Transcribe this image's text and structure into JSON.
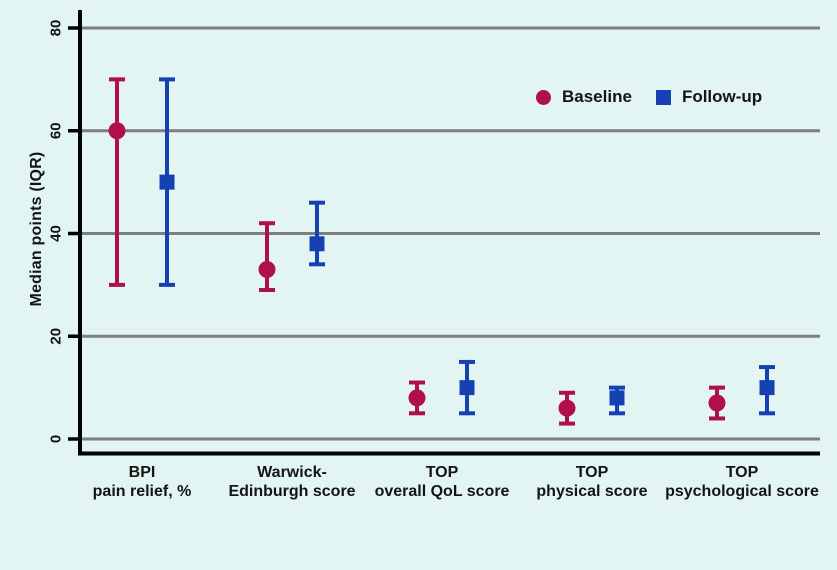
{
  "figure": {
    "background_color": "#e2f5f3"
  },
  "chart_data": {
    "type": "scatter",
    "subtype": "median-with-iqr-error-bars",
    "title": "",
    "xlabel": "",
    "ylabel": "Median points (IQR)",
    "yticks": [
      0,
      20,
      40,
      60,
      80
    ],
    "ylim": [
      0,
      83
    ],
    "grid": true,
    "legend_position": "top-right-inside",
    "background_color": "#e2f5f3",
    "gridline_color": "#7f7f7f",
    "axis_color": "#000000",
    "categories": [
      {
        "line1": "BPI",
        "line2": "pain relief, %"
      },
      {
        "line1": "Warwick-",
        "line2": "Edinburgh score"
      },
      {
        "line1": "TOP",
        "line2": "overall QoL score"
      },
      {
        "line1": "TOP",
        "line2": "physical score"
      },
      {
        "line1": "TOP",
        "line2": "psychological score"
      }
    ],
    "series": [
      {
        "name": "Baseline",
        "marker": "circle",
        "color": "#b00e4d",
        "values": [
          {
            "median": 60,
            "q1": 30,
            "q3": 70
          },
          {
            "median": 33,
            "q1": 29,
            "q3": 42
          },
          {
            "median": 8,
            "q1": 5,
            "q3": 11
          },
          {
            "median": 6,
            "q1": 3,
            "q3": 9
          },
          {
            "median": 7,
            "q1": 4,
            "q3": 10
          }
        ]
      },
      {
        "name": "Follow-up",
        "marker": "square",
        "color": "#1541b2",
        "values": [
          {
            "median": 50,
            "q1": 30,
            "q3": 70
          },
          {
            "median": 38,
            "q1": 34,
            "q3": 46
          },
          {
            "median": 10,
            "q1": 5,
            "q3": 15
          },
          {
            "median": 8,
            "q1": 5,
            "q3": 10
          },
          {
            "median": 10,
            "q1": 5,
            "q3": 14
          }
        ]
      }
    ]
  }
}
